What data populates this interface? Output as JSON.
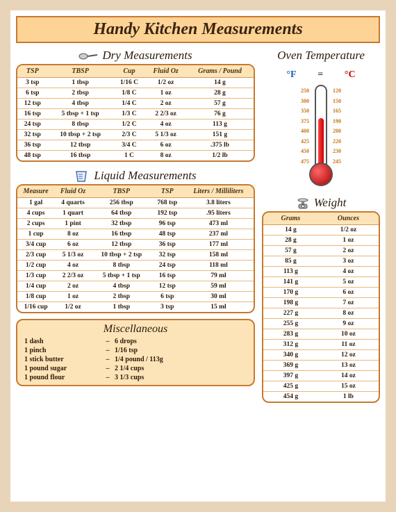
{
  "title": "Handy Kitchen Measurements",
  "dry": {
    "title": "Dry Measurements",
    "headers": [
      "TSP",
      "TBSP",
      "Cup",
      "Fluid Oz",
      "Grams / Pound"
    ],
    "rows": [
      [
        "3 tsp",
        "1 tbsp",
        "1/16 C",
        "1/2 oz",
        "14 g"
      ],
      [
        "6 tsp",
        "2 tbsp",
        "1/8 C",
        "1 oz",
        "28 g"
      ],
      [
        "12 tsp",
        "4 tbsp",
        "1/4 C",
        "2 oz",
        "57 g"
      ],
      [
        "16 tsp",
        "5 tbsp + 1 tsp",
        "1/3 C",
        "2 2/3 oz",
        "76 g"
      ],
      [
        "24 tsp",
        "8 tbsp",
        "1/2 C",
        "4 oz",
        "113 g"
      ],
      [
        "32 tsp",
        "10 tbsp + 2 tsp",
        "2/3 C",
        "5 1/3 oz",
        "151 g"
      ],
      [
        "36 tsp",
        "12 tbsp",
        "3/4 C",
        "6 oz",
        ".375 lb"
      ],
      [
        "48 tsp",
        "16 tbsp",
        "1 C",
        "8 oz",
        "1/2 lb"
      ]
    ]
  },
  "liquid": {
    "title": "Liquid Measurements",
    "headers": [
      "Measure",
      "Fluid Oz",
      "TBSP",
      "TSP",
      "Liters / Milliliters"
    ],
    "rows": [
      [
        "1 gal",
        "4 quarts",
        "256 tbsp",
        "768 tsp",
        "3.8 liters"
      ],
      [
        "4 cups",
        "1 quart",
        "64 tbsp",
        "192 tsp",
        ".95 liters"
      ],
      [
        "2 cups",
        "1 pint",
        "32 tbsp",
        "96 tsp",
        "473 ml"
      ],
      [
        "1 cup",
        "8 oz",
        "16 tbsp",
        "48 tsp",
        "237 ml"
      ],
      [
        "3/4 cup",
        "6 oz",
        "12 tbsp",
        "36 tsp",
        "177 ml"
      ],
      [
        "2/3 cup",
        "5 1/3 oz",
        "10 tbsp + 2 tsp",
        "32 tsp",
        "158 ml"
      ],
      [
        "1/2 cup",
        "4 oz",
        "8 tbsp",
        "24 tsp",
        "118 ml"
      ],
      [
        "1/3 cup",
        "2 2/3 oz",
        "5 tbsp + 1 tsp",
        "16 tsp",
        "79 ml"
      ],
      [
        "1/4 cup",
        "2 oz",
        "4 tbsp",
        "12 tsp",
        "59 ml"
      ],
      [
        "1/8 cup",
        "1 oz",
        "2 tbsp",
        "6 tsp",
        "30 ml"
      ],
      [
        "1/16 cup",
        "1/2 oz",
        "1 tbsp",
        "3 tsp",
        "15 ml"
      ]
    ]
  },
  "misc": {
    "title": "Miscellaneous",
    "rows": [
      [
        "1 dash",
        "6 drops"
      ],
      [
        "1 pinch",
        "1/16 tsp"
      ],
      [
        "1 stick butter",
        "1/4 pound / 113g"
      ],
      [
        "1 pound sugar",
        "2 1/4 cups"
      ],
      [
        "1 pound flour",
        "3 1/3 cups"
      ]
    ]
  },
  "oven": {
    "title": "Oven Temperature",
    "f_label": "°F",
    "eq": "=",
    "c_label": "°C",
    "f_scale": [
      "250",
      "300",
      "350",
      "375",
      "400",
      "425",
      "450",
      "475"
    ],
    "c_scale": [
      "120",
      "150",
      "165",
      "190",
      "200",
      "220",
      "230",
      "245"
    ]
  },
  "weight": {
    "title": "Weight",
    "headers": [
      "Grams",
      "Ounces"
    ],
    "rows": [
      [
        "14 g",
        "1/2 oz"
      ],
      [
        "28 g",
        "1 oz"
      ],
      [
        "57 g",
        "2 oz"
      ],
      [
        "85 g",
        "3 oz"
      ],
      [
        "113 g",
        "4 oz"
      ],
      [
        "141 g",
        "5 oz"
      ],
      [
        "170 g",
        "6 oz"
      ],
      [
        "198 g",
        "7 oz"
      ],
      [
        "227 g",
        "8 oz"
      ],
      [
        "255 g",
        "9 oz"
      ],
      [
        "283 g",
        "10 oz"
      ],
      [
        "312 g",
        "11 oz"
      ],
      [
        "340 g",
        "12 oz"
      ],
      [
        "369 g",
        "13 oz"
      ],
      [
        "397 g",
        "14 oz"
      ],
      [
        "425 g",
        "15 oz"
      ],
      [
        "454 g",
        "1 lb"
      ]
    ]
  }
}
